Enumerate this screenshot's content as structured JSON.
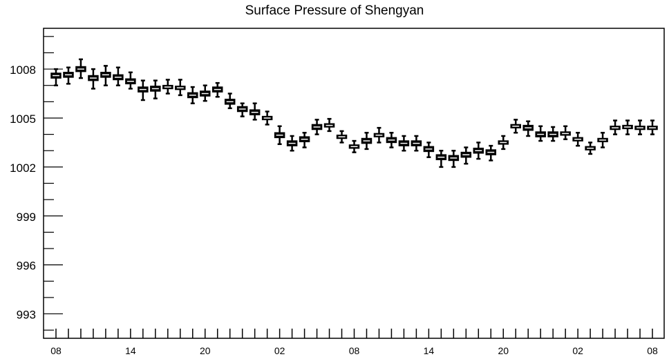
{
  "chart_data": {
    "type": "boxplot",
    "title": "Surface Pressure of Shengyan",
    "xlabel": "",
    "ylabel": "",
    "ylim": [
      991.5,
      1010.5
    ],
    "y_ticks": [
      993,
      996,
      999,
      1002,
      1005,
      1008
    ],
    "x_tick_labels": [
      "08",
      "14",
      "20",
      "02",
      "08",
      "14",
      "20",
      "02",
      "08"
    ],
    "x_start_hour": 8,
    "hour_step": 1,
    "label_every": 6,
    "grid": false,
    "legend": "none",
    "box_color": "#000000",
    "median_color": "#ffffff",
    "boxes": [
      {
        "hour": 8,
        "min": 1007.0,
        "q1": 1007.45,
        "median": 1007.6,
        "q3": 1007.75,
        "max": 1008.0
      },
      {
        "hour": 9,
        "min": 1007.1,
        "q1": 1007.5,
        "median": 1007.65,
        "q3": 1007.8,
        "max": 1008.1
      },
      {
        "hour": 10,
        "min": 1007.45,
        "q1": 1007.85,
        "median": 1008.0,
        "q3": 1008.15,
        "max": 1008.6
      },
      {
        "hour": 11,
        "min": 1006.8,
        "q1": 1007.3,
        "median": 1007.45,
        "q3": 1007.6,
        "max": 1008.0
      },
      {
        "hour": 12,
        "min": 1007.0,
        "q1": 1007.5,
        "median": 1007.65,
        "q3": 1007.8,
        "max": 1008.2
      },
      {
        "hour": 13,
        "min": 1007.0,
        "q1": 1007.35,
        "median": 1007.5,
        "q3": 1007.65,
        "max": 1008.1
      },
      {
        "hour": 14,
        "min": 1006.8,
        "q1": 1007.1,
        "median": 1007.25,
        "q3": 1007.4,
        "max": 1007.8
      },
      {
        "hour": 15,
        "min": 1006.1,
        "q1": 1006.6,
        "median": 1006.75,
        "q3": 1006.9,
        "max": 1007.3
      },
      {
        "hour": 16,
        "min": 1006.2,
        "q1": 1006.65,
        "median": 1006.8,
        "q3": 1006.95,
        "max": 1007.3
      },
      {
        "hour": 17,
        "min": 1006.5,
        "q1": 1006.8,
        "median": 1006.9,
        "q3": 1007.0,
        "max": 1007.35
      },
      {
        "hour": 18,
        "min": 1006.4,
        "q1": 1006.75,
        "median": 1006.85,
        "q3": 1006.95,
        "max": 1007.35
      },
      {
        "hour": 19,
        "min": 1005.9,
        "q1": 1006.25,
        "median": 1006.4,
        "q3": 1006.55,
        "max": 1006.9
      },
      {
        "hour": 20,
        "min": 1006.05,
        "q1": 1006.35,
        "median": 1006.5,
        "q3": 1006.65,
        "max": 1007.0
      },
      {
        "hour": 21,
        "min": 1006.3,
        "q1": 1006.6,
        "median": 1006.75,
        "q3": 1006.9,
        "max": 1007.15
      },
      {
        "hour": 22,
        "min": 1005.6,
        "q1": 1005.85,
        "median": 1006.0,
        "q3": 1006.15,
        "max": 1006.5
      },
      {
        "hour": 23,
        "min": 1005.1,
        "q1": 1005.4,
        "median": 1005.55,
        "q3": 1005.7,
        "max": 1005.9
      },
      {
        "hour": 0,
        "min": 1004.9,
        "q1": 1005.2,
        "median": 1005.35,
        "q3": 1005.5,
        "max": 1005.9
      },
      {
        "hour": 1,
        "min": 1004.6,
        "q1": 1004.9,
        "median": 1005.0,
        "q3": 1005.1,
        "max": 1005.4
      },
      {
        "hour": 2,
        "min": 1003.4,
        "q1": 1003.8,
        "median": 1003.95,
        "q3": 1004.1,
        "max": 1004.5
      },
      {
        "hour": 3,
        "min": 1003.0,
        "q1": 1003.3,
        "median": 1003.45,
        "q3": 1003.6,
        "max": 1003.9
      },
      {
        "hour": 4,
        "min": 1003.2,
        "q1": 1003.55,
        "median": 1003.7,
        "q3": 1003.85,
        "max": 1004.1
      },
      {
        "hour": 5,
        "min": 1004.0,
        "q1": 1004.3,
        "median": 1004.45,
        "q3": 1004.6,
        "max": 1004.9
      },
      {
        "hour": 6,
        "min": 1004.2,
        "q1": 1004.45,
        "median": 1004.55,
        "q3": 1004.65,
        "max": 1004.95
      },
      {
        "hour": 7,
        "min": 1003.5,
        "q1": 1003.75,
        "median": 1003.85,
        "q3": 1003.95,
        "max": 1004.2
      },
      {
        "hour": 8,
        "min": 1002.9,
        "q1": 1003.15,
        "median": 1003.25,
        "q3": 1003.35,
        "max": 1003.6
      },
      {
        "hour": 9,
        "min": 1003.1,
        "q1": 1003.45,
        "median": 1003.6,
        "q3": 1003.75,
        "max": 1004.1
      },
      {
        "hour": 10,
        "min": 1003.5,
        "q1": 1003.85,
        "median": 1003.95,
        "q3": 1004.05,
        "max": 1004.4
      },
      {
        "hour": 11,
        "min": 1003.2,
        "q1": 1003.5,
        "median": 1003.65,
        "q3": 1003.8,
        "max": 1004.1
      },
      {
        "hour": 12,
        "min": 1003.0,
        "q1": 1003.3,
        "median": 1003.45,
        "q3": 1003.6,
        "max": 1003.9
      },
      {
        "hour": 13,
        "min": 1003.0,
        "q1": 1003.3,
        "median": 1003.45,
        "q3": 1003.6,
        "max": 1003.9
      },
      {
        "hour": 14,
        "min": 1002.6,
        "q1": 1002.95,
        "median": 1003.1,
        "q3": 1003.25,
        "max": 1003.5
      },
      {
        "hour": 15,
        "min": 1002.0,
        "q1": 1002.45,
        "median": 1002.6,
        "q3": 1002.75,
        "max": 1003.0
      },
      {
        "hour": 16,
        "min": 1002.0,
        "q1": 1002.4,
        "median": 1002.55,
        "q3": 1002.7,
        "max": 1003.0
      },
      {
        "hour": 17,
        "min": 1002.2,
        "q1": 1002.6,
        "median": 1002.75,
        "q3": 1002.9,
        "max": 1003.2
      },
      {
        "hour": 18,
        "min": 1002.5,
        "q1": 1002.85,
        "median": 1003.0,
        "q3": 1003.15,
        "max": 1003.5
      },
      {
        "hour": 19,
        "min": 1002.4,
        "q1": 1002.75,
        "median": 1002.9,
        "q3": 1003.05,
        "max": 1003.3
      },
      {
        "hour": 20,
        "min": 1003.1,
        "q1": 1003.4,
        "median": 1003.5,
        "q3": 1003.6,
        "max": 1003.9
      },
      {
        "hour": 21,
        "min": 1004.1,
        "q1": 1004.4,
        "median": 1004.5,
        "q3": 1004.6,
        "max": 1004.9
      },
      {
        "hour": 22,
        "min": 1003.9,
        "q1": 1004.25,
        "median": 1004.4,
        "q3": 1004.55,
        "max": 1004.8
      },
      {
        "hour": 23,
        "min": 1003.6,
        "q1": 1003.85,
        "median": 1004.0,
        "q3": 1004.15,
        "max": 1004.5
      },
      {
        "hour": 0,
        "min": 1003.6,
        "q1": 1003.85,
        "median": 1004.0,
        "q3": 1004.15,
        "max": 1004.45
      },
      {
        "hour": 1,
        "min": 1003.7,
        "q1": 1003.95,
        "median": 1004.05,
        "q3": 1004.15,
        "max": 1004.5
      },
      {
        "hour": 2,
        "min": 1003.3,
        "q1": 1003.6,
        "median": 1003.7,
        "q3": 1003.8,
        "max": 1004.1
      },
      {
        "hour": 3,
        "min": 1002.8,
        "q1": 1003.05,
        "median": 1003.15,
        "q3": 1003.25,
        "max": 1003.5
      },
      {
        "hour": 4,
        "min": 1003.2,
        "q1": 1003.55,
        "median": 1003.65,
        "q3": 1003.75,
        "max": 1004.1
      },
      {
        "hour": 5,
        "min": 1004.0,
        "q1": 1004.3,
        "median": 1004.4,
        "q3": 1004.5,
        "max": 1004.85
      },
      {
        "hour": 6,
        "min": 1004.0,
        "q1": 1004.35,
        "median": 1004.45,
        "q3": 1004.55,
        "max": 1004.85
      },
      {
        "hour": 7,
        "min": 1004.0,
        "q1": 1004.3,
        "median": 1004.4,
        "q3": 1004.5,
        "max": 1004.85
      },
      {
        "hour": 8,
        "min": 1004.0,
        "q1": 1004.3,
        "median": 1004.4,
        "q3": 1004.5,
        "max": 1004.85
      }
    ]
  }
}
